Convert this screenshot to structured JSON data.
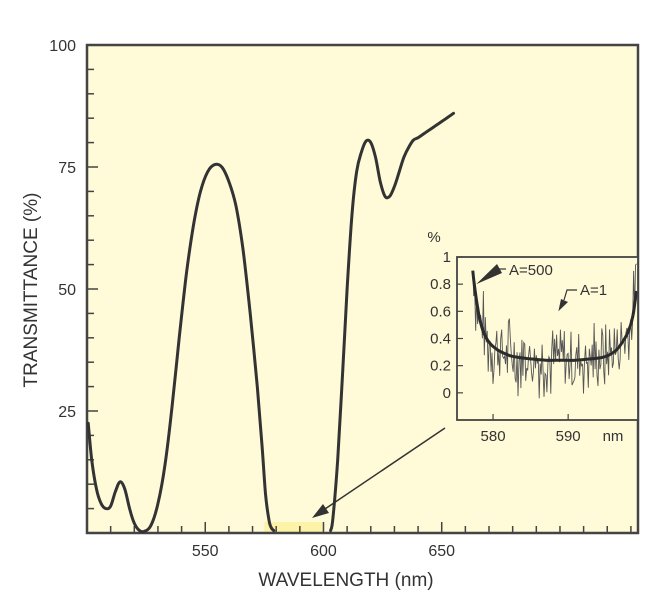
{
  "colors": {
    "plot_background": "#fffad8",
    "axis": "#444444",
    "curve": "#333333",
    "highlight_band": "#fdf3a6",
    "noisy_curve": "#555555"
  },
  "chart_data": [
    {
      "id": "main",
      "type": "line",
      "title": "",
      "xlabel": "WAVELENGTH (nm)",
      "ylabel": "TRANSMITTANCE (%)",
      "xlim": [
        500,
        733
      ],
      "ylim": [
        0,
        100
      ],
      "x_ticks": [
        550,
        600,
        650
      ],
      "x_tick_labels": [
        "550",
        "600",
        "650"
      ],
      "y_ticks": [
        25,
        50,
        75,
        100
      ],
      "y_tick_labels": [
        "25",
        "50",
        "75",
        "100"
      ],
      "grid": false,
      "series": [
        {
          "name": "transmittance",
          "x": [
            500.5,
            502,
            504,
            506,
            508,
            510,
            512,
            514,
            516,
            518,
            520,
            522,
            524,
            527,
            530,
            533,
            536,
            539,
            542,
            545,
            548,
            551,
            554,
            557,
            560,
            563,
            566,
            569,
            572,
            574,
            575.5,
            577,
            578,
            579,
            603,
            604,
            606,
            608,
            610,
            612,
            614,
            616,
            618,
            620,
            622,
            624,
            626,
            628,
            630,
            632,
            634,
            636,
            638,
            640,
            643,
            646,
            649,
            652,
            655
          ],
          "y": [
            22.5,
            15,
            9,
            6,
            5,
            5.5,
            8.5,
            10.5,
            9,
            5,
            2,
            0.6,
            0.3,
            1.5,
            6,
            14,
            26,
            40,
            53,
            63,
            70,
            74,
            75.5,
            75,
            72,
            67,
            58,
            45,
            30,
            18,
            8,
            2.5,
            1,
            0.5,
            0.5,
            3,
            15,
            32,
            50,
            65,
            74,
            78,
            80.3,
            80,
            77,
            72,
            69,
            69,
            71,
            74,
            77,
            79,
            80.5,
            81,
            82,
            83,
            84,
            85,
            86
          ]
        }
      ],
      "annotations": [
        {
          "type": "highlight-band",
          "x_range": [
            575,
            600
          ],
          "y": 0,
          "label": ""
        },
        {
          "type": "arrow",
          "from_inset_to": [
            585,
            2
          ]
        }
      ]
    },
    {
      "id": "inset",
      "type": "line",
      "title": "",
      "xlabel": "nm",
      "ylabel": "%",
      "xlim": [
        575.2,
        599.3
      ],
      "ylim": [
        -0.2,
        1
      ],
      "x_ticks": [
        580,
        590
      ],
      "x_tick_labels": [
        "580",
        "590"
      ],
      "y_ticks": [
        0,
        0.2,
        0.4,
        0.6,
        0.8,
        1
      ],
      "y_tick_labels": [
        "0",
        "0.2",
        "0.4",
        "0.6",
        "0.8",
        "1"
      ],
      "grid": false,
      "series": [
        {
          "name": "A=500",
          "style": "thick-smooth",
          "x": [
            577.3,
            577.5,
            577.8,
            578.2,
            578.7,
            579.5,
            580.5,
            581.5,
            582.5,
            583.5,
            585,
            587,
            589,
            591,
            593,
            594.5,
            595.5,
            596.5,
            597.3,
            598,
            598.6,
            599.1
          ],
          "y": [
            0.9,
            0.8,
            0.68,
            0.55,
            0.45,
            0.37,
            0.32,
            0.29,
            0.27,
            0.26,
            0.25,
            0.24,
            0.24,
            0.24,
            0.25,
            0.26,
            0.28,
            0.32,
            0.38,
            0.45,
            0.56,
            0.75
          ]
        },
        {
          "name": "A=1",
          "style": "thin-noisy",
          "x_range": [
            577.3,
            599.1
          ],
          "baseline_follows": "A=500",
          "noise_amplitude": 0.25
        }
      ],
      "annotations": [
        {
          "text": "A=500",
          "points_to": [
            577.5,
            0.8
          ]
        },
        {
          "text": "A=1",
          "points_to": [
            588.7,
            0.63
          ]
        }
      ]
    }
  ]
}
